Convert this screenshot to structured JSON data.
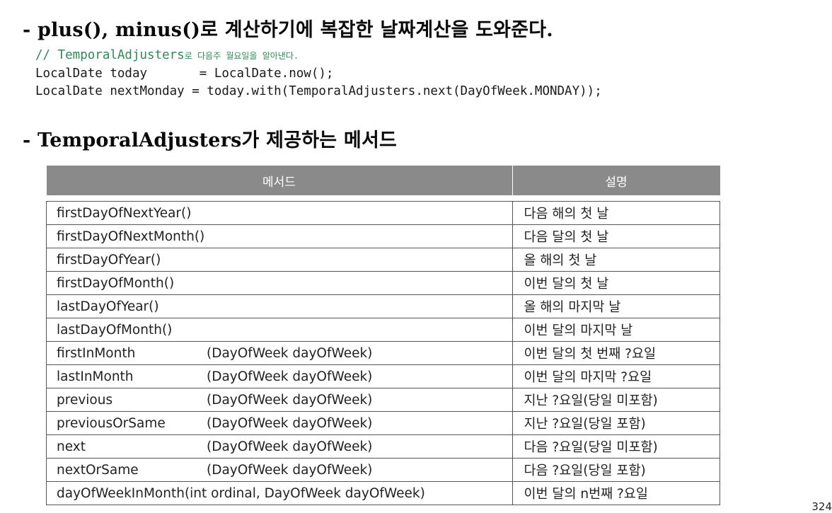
{
  "heading1": "- plus(), minus()로 계산하기에 복잡한 날짜계산을 도와준다.",
  "code": {
    "comment_prefix": "// TemporalAdjusters",
    "comment_korean": "로 다음주 월요일을 알아낸다.",
    "line2": "LocalDate today       = LocalDate.now();",
    "line3": "LocalDate nextMonday = today.with(TemporalAdjusters.next(DayOfWeek.MONDAY));"
  },
  "heading2": "- TemporalAdjusters가 제공하는 메서드",
  "table": {
    "headers": [
      "메서드",
      "설명"
    ],
    "rows": [
      {
        "method": "firstDayOfNextYear()",
        "params": "",
        "desc": "다음 해의 첫 날"
      },
      {
        "method": "firstDayOfNextMonth()",
        "params": "",
        "desc": "다음 달의 첫 날"
      },
      {
        "method": "firstDayOfYear()",
        "params": "",
        "desc": "올 해의 첫 날"
      },
      {
        "method": "firstDayOfMonth()",
        "params": "",
        "desc": "이번 달의 첫 날"
      },
      {
        "method": "lastDayOfYear()",
        "params": "",
        "desc": "올 해의 마지막 날"
      },
      {
        "method": "lastDayOfMonth()",
        "params": "",
        "desc": "이번 달의 마지막 날"
      },
      {
        "method": "firstInMonth",
        "params": "(DayOfWeek dayOfWeek)",
        "desc": "이번 달의 첫 번째 ?요일"
      },
      {
        "method": "lastInMonth",
        "params": "(DayOfWeek dayOfWeek)",
        "desc": "이번 달의 마지막 ?요일"
      },
      {
        "method": "previous",
        "params": "(DayOfWeek dayOfWeek)",
        "desc": "지난 ?요일(당일 미포함)"
      },
      {
        "method": "previousOrSame",
        "params": "(DayOfWeek dayOfWeek)",
        "desc": "지난 ?요일(당일 포함)"
      },
      {
        "method": "next",
        "params": "(DayOfWeek dayOfWeek)",
        "desc": "다음 ?요일(당일 미포함)"
      },
      {
        "method": "nextOrSame",
        "params": "(DayOfWeek dayOfWeek)",
        "desc": "다음 ?요일(당일 포함)"
      },
      {
        "method": "dayOfWeekInMonth(int ordinal, DayOfWeek dayOfWeek)",
        "params": "",
        "desc": "이번 달의 n번째 ?요일"
      }
    ]
  },
  "page_number": "324"
}
